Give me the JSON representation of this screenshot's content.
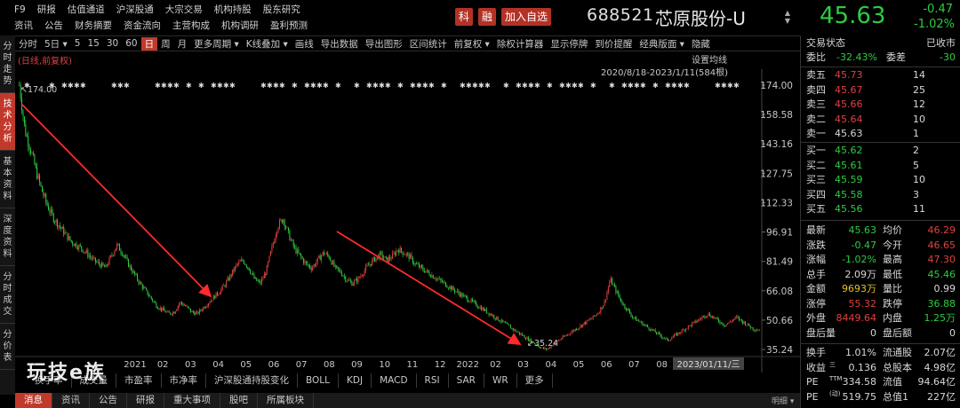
{
  "topmenu": {
    "row1": [
      "F9",
      "研报",
      "估值通道",
      "沪深股通",
      "大宗交易",
      "机构持股",
      "股东研究"
    ],
    "row2": [
      "资讯",
      "公告",
      "财务摘要",
      "资金流向",
      "主营构成",
      "机构调研",
      "盈利预测"
    ]
  },
  "badges": {
    "ke": "科",
    "rong": "融",
    "add_watch": "加入自选"
  },
  "stock": {
    "code": "688521",
    "name": "芯原股份-U",
    "price": "45.63",
    "change": "-0.47",
    "change_pct": "-1.02%"
  },
  "toolbar": [
    "分时",
    "5日 ▾",
    "5",
    "15",
    "30",
    "60",
    "日",
    "周",
    "月",
    "更多周期 ▾",
    "K线叠加 ▾",
    "画线",
    "导出数据",
    "导出图形",
    "区间统计",
    "前复权 ▾",
    "除权计算器",
    "显示停牌",
    "到价提醒",
    "经典版面 ▾",
    "隐藏"
  ],
  "toolbar_active": "日",
  "lefttabs": [
    {
      "label": "分时走势",
      "active": false
    },
    {
      "label": "技术分析",
      "active": true
    },
    {
      "label": "基本资料",
      "active": false
    },
    {
      "label": "深度资料",
      "active": false
    },
    {
      "label": "分时成交",
      "active": false
    },
    {
      "label": "分价表",
      "active": false
    }
  ],
  "chart": {
    "note": "(日线,前复权)",
    "set_ma": "设置均线",
    "date_range": "2020/8/18-2023/1/11(584根)",
    "high_label": "174.00",
    "low_label": "35.24",
    "cursor_date": "2023/01/11/三",
    "y_ticks": [
      "174.00",
      "158.58",
      "143.16",
      "127.75",
      "112.33",
      "96.91",
      "81.49",
      "66.08",
      "50.66",
      "35.24"
    ],
    "y_range": [
      35.24,
      174.0
    ],
    "x_ticks": [
      "2021",
      "02",
      "03",
      "04",
      "05",
      "06",
      "07",
      "08",
      "09",
      "10",
      "11",
      "12",
      "2022",
      "02",
      "03",
      "04",
      "05",
      "06",
      "07",
      "08",
      "09",
      "10"
    ]
  },
  "chart_data": {
    "type": "candlestick",
    "series": [
      {
        "values": [
          174,
          150,
          140,
          128,
          118,
          110,
          104,
          100,
          96,
          92,
          90,
          88,
          85,
          82,
          80,
          78,
          84,
          90,
          86,
          80,
          75,
          70,
          66,
          62,
          58,
          56,
          54,
          55,
          60,
          58,
          55,
          54,
          57,
          60,
          63,
          66,
          70,
          75,
          80,
          82,
          78,
          72,
          70,
          76,
          88,
          100,
          104,
          95,
          88,
          84,
          80,
          78,
          82,
          86,
          84,
          78,
          76,
          72,
          70,
          72,
          76,
          80,
          83,
          85,
          82,
          84,
          88,
          86,
          84,
          80,
          78,
          76,
          74,
          72,
          70,
          68,
          66,
          64,
          62,
          60,
          58,
          56,
          54,
          52,
          50,
          48,
          46,
          44,
          42,
          40,
          38,
          36,
          35.24,
          38,
          40,
          42,
          44,
          46,
          48,
          50,
          52,
          55,
          60,
          72,
          66,
          60,
          56,
          52,
          50,
          48,
          46,
          44,
          42,
          40,
          42,
          44,
          46,
          48,
          50,
          52,
          54,
          52,
          50,
          48,
          50,
          52,
          50,
          48,
          46,
          45.63
        ]
      }
    ]
  },
  "indtabs": [
    "换手率",
    "成交量",
    "市盈率",
    "市净率",
    "沪深股通持股变化",
    "BOLL",
    "KDJ",
    "MACD",
    "RSI",
    "SAR",
    "WR",
    "更多"
  ],
  "watermark": "玩技e族",
  "bottomtabs": [
    "消息",
    "资讯",
    "公告",
    "研报",
    "重大事项",
    "股吧",
    "所属板块"
  ],
  "bottomtabs_active": "消息",
  "bottomright": "明细 ▾",
  "rp": {
    "status_label": "交易状态",
    "status_value": "已收市",
    "weibi_label": "委比",
    "weibi_value": "-32.43%",
    "weicha_label": "委差",
    "weicha_value": "-30",
    "asks": [
      {
        "label": "卖五",
        "price": "45.73",
        "vol": "14"
      },
      {
        "label": "卖四",
        "price": "45.67",
        "vol": "25"
      },
      {
        "label": "卖三",
        "price": "45.66",
        "vol": "12"
      },
      {
        "label": "卖二",
        "price": "45.64",
        "vol": "10"
      },
      {
        "label": "卖一",
        "price": "45.63",
        "vol": "1"
      }
    ],
    "bids": [
      {
        "label": "买一",
        "price": "45.62",
        "vol": "2"
      },
      {
        "label": "买二",
        "price": "45.61",
        "vol": "5"
      },
      {
        "label": "买三",
        "price": "45.59",
        "vol": "10"
      },
      {
        "label": "买四",
        "price": "45.58",
        "vol": "3"
      },
      {
        "label": "买五",
        "price": "45.56",
        "vol": "11"
      }
    ],
    "stats": [
      {
        "l1": "最新",
        "v1": "45.63",
        "c1": "g",
        "l2": "均价",
        "v2": "46.29",
        "c2": "red"
      },
      {
        "l1": "涨跌",
        "v1": "-0.47",
        "c1": "g",
        "l2": "今开",
        "v2": "46.65",
        "c2": "red"
      },
      {
        "l1": "涨幅",
        "v1": "-1.02%",
        "c1": "g",
        "l2": "最高",
        "v2": "47.30",
        "c2": "red"
      },
      {
        "l1": "总手",
        "v1": "2.09万",
        "c1": "w",
        "l2": "最低",
        "v2": "45.46",
        "c2": "g"
      },
      {
        "l1": "金额",
        "v1": "9693万",
        "c1": "yel",
        "l2": "量比",
        "v2": "0.99",
        "c2": "w"
      },
      {
        "l1": "涨停",
        "v1": "55.32",
        "c1": "red",
        "l2": "跌停",
        "v2": "36.88",
        "c2": "g"
      },
      {
        "l1": "外盘",
        "v1": "8449.64",
        "c1": "red",
        "l2": "内盘",
        "v2": "1.25万",
        "c2": "g"
      },
      {
        "l1": "盘后量",
        "v1": "0",
        "c1": "w",
        "l2": "盘后额",
        "v2": "0",
        "c2": "w"
      }
    ],
    "fund": [
      {
        "l1": "换手",
        "v1": "1.01%",
        "l2": "流通股",
        "v2": "2.07亿"
      },
      {
        "l1": "收益",
        "sup1": "三",
        "v1": "0.136",
        "l2": "总股本",
        "v2": "4.98亿"
      },
      {
        "l1": "PE",
        "sup1": "TTM",
        "v1": "334.58",
        "l2": "流值",
        "v2": "94.64亿"
      },
      {
        "l1": "PE",
        "sup1": "(动)",
        "v1": "519.75",
        "l2": "总值1",
        "v2": "227亿"
      }
    ]
  },
  "colors": {
    "up": "#e04040",
    "down": "#2ecc40",
    "accent": "#c0392b",
    "arrow": "#ff2a2a"
  }
}
